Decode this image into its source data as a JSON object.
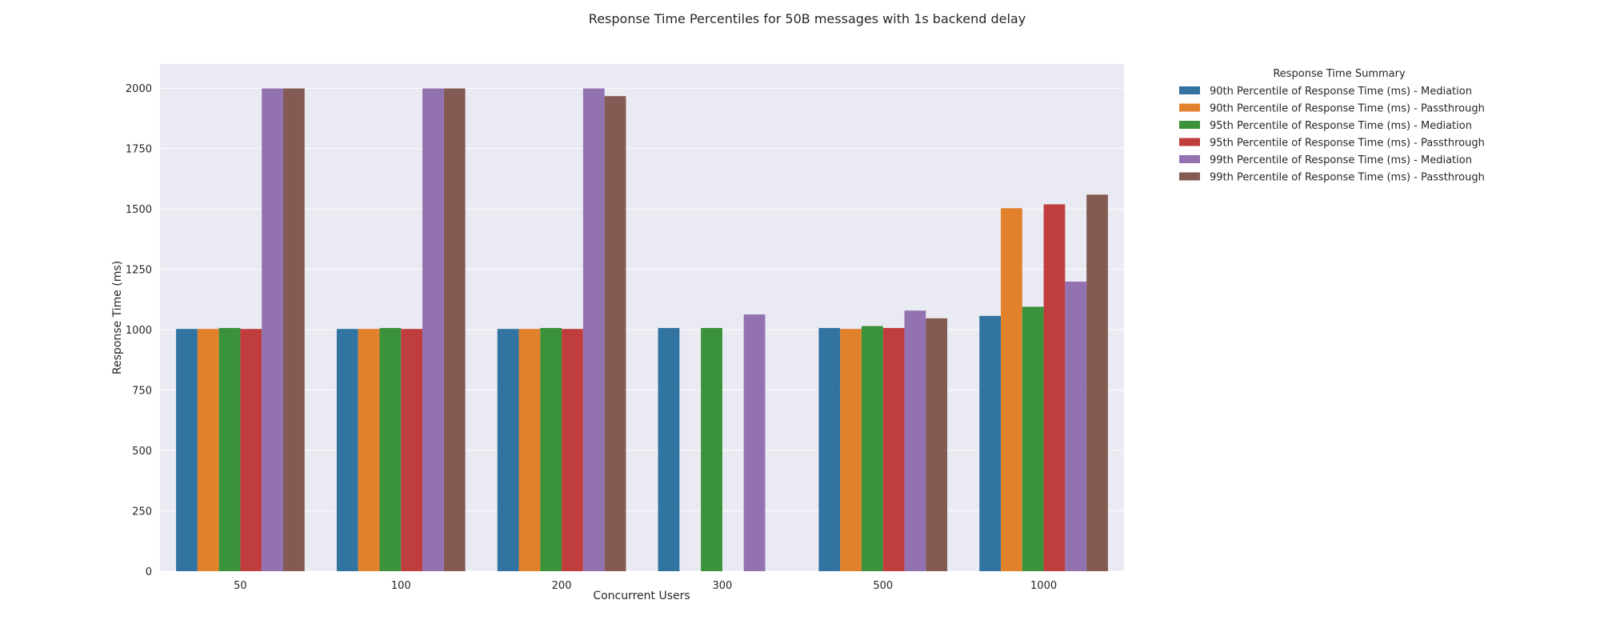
{
  "chart_data": {
    "type": "bar",
    "title": "Response Time Percentiles for 50B messages with 1s backend delay",
    "xlabel": "Concurrent Users",
    "ylabel": "Response Time (ms)",
    "ylim": [
      0,
      2100
    ],
    "yticks": [
      0,
      250,
      500,
      750,
      1000,
      1250,
      1500,
      1750,
      2000
    ],
    "grid": true,
    "legend_title": "Response Time Summary",
    "legend_position": "outside-top-right",
    "categories": [
      "50",
      "100",
      "200",
      "300",
      "500",
      "1000"
    ],
    "series": [
      {
        "name": "90th Percentile of Response Time (ms) - Mediation",
        "color": "#3274a1",
        "values": [
          1003,
          1003,
          1003,
          1007,
          1007,
          1057
        ]
      },
      {
        "name": "90th Percentile of Response Time (ms) - Passthrough",
        "color": "#e1812c",
        "values": [
          1003,
          1003,
          1003,
          null,
          1003,
          1503
        ]
      },
      {
        "name": "95th Percentile of Response Time (ms) - Mediation",
        "color": "#3a923a",
        "values": [
          1007,
          1007,
          1007,
          1007,
          1015,
          1095
        ]
      },
      {
        "name": "95th Percentile of Response Time (ms) - Passthrough",
        "color": "#c03d3e",
        "values": [
          1003,
          1003,
          1003,
          null,
          1007,
          1519
        ]
      },
      {
        "name": "99th Percentile of Response Time (ms) - Mediation",
        "color": "#9372b2",
        "values": [
          1999,
          1999,
          1999,
          1063,
          1079,
          1199
        ]
      },
      {
        "name": "99th Percentile of Response Time (ms) - Passthrough",
        "color": "#845b53",
        "values": [
          1999,
          1999,
          1967,
          null,
          1047,
          1559
        ]
      }
    ]
  }
}
